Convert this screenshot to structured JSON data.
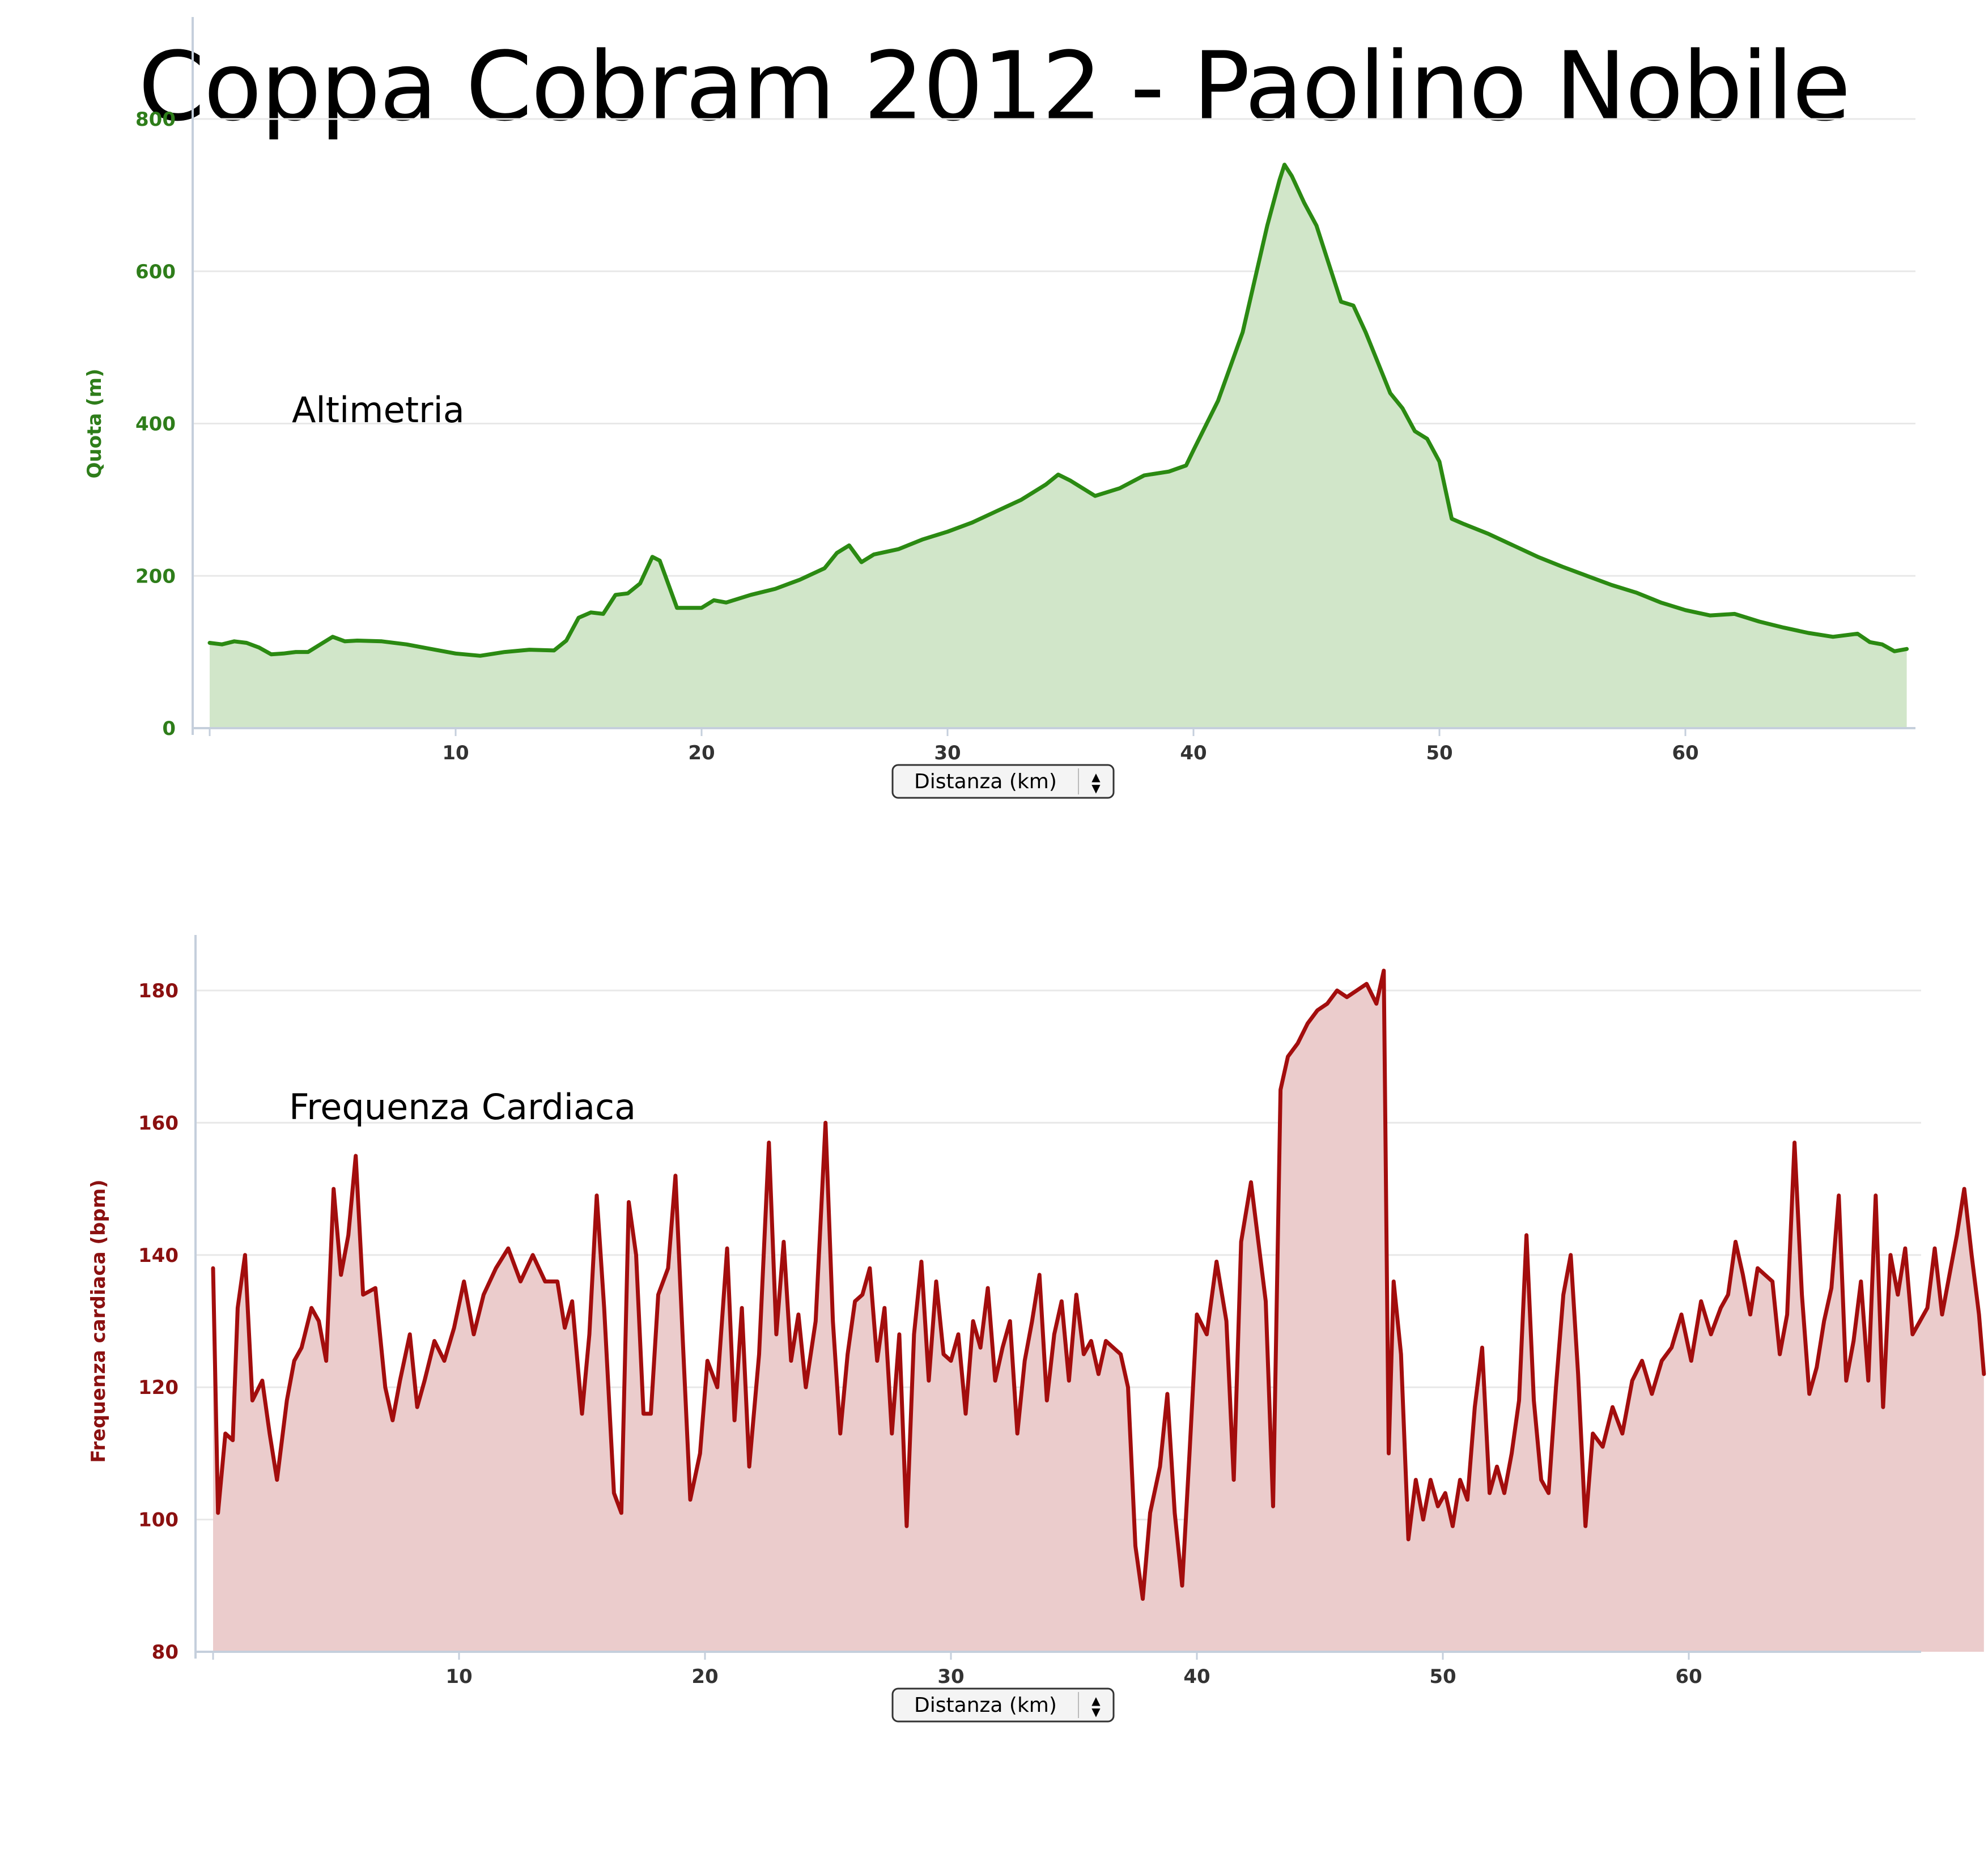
{
  "title": "Coppa Cobram 2012 - Paolino Nobile",
  "x_selector": {
    "label": "Distanza (km)",
    "arrow_up_icon": "▲",
    "arrow_down_icon": "▼"
  },
  "colors": {
    "altimetria_line": "#2b8a12",
    "altimetria_fill": "#d1e6c9",
    "altimetria_text": "#2e7d1a",
    "freq_line": "#a30d0d",
    "freq_fill": "#ebcccc",
    "freq_text": "#8b1010",
    "grid": "#e8e8e8",
    "axis": "#c5cfdc"
  },
  "chart_data": [
    {
      "type": "area",
      "annotation": "Altimetria",
      "xlabel": "Distanza (km)",
      "ylabel": "Quota (m)",
      "xlim": [
        0,
        69
      ],
      "ylim": [
        0,
        800
      ],
      "x_ticks": [
        "10",
        "20",
        "30",
        "40",
        "50",
        "60"
      ],
      "y_ticks": [
        "0",
        "200",
        "400",
        "600",
        "800"
      ],
      "grid": true,
      "points": [
        [
          0,
          112
        ],
        [
          0.5,
          110
        ],
        [
          1,
          114
        ],
        [
          1.5,
          112
        ],
        [
          2,
          106
        ],
        [
          2.5,
          97
        ],
        [
          3,
          98
        ],
        [
          3.5,
          100
        ],
        [
          4,
          100
        ],
        [
          4.5,
          110
        ],
        [
          5,
          120
        ],
        [
          5.5,
          114
        ],
        [
          6,
          115
        ],
        [
          7,
          114
        ],
        [
          8,
          110
        ],
        [
          9,
          104
        ],
        [
          10,
          98
        ],
        [
          11,
          95
        ],
        [
          12,
          100
        ],
        [
          13,
          103
        ],
        [
          14,
          102
        ],
        [
          14.5,
          115
        ],
        [
          15,
          145
        ],
        [
          15.5,
          152
        ],
        [
          16,
          150
        ],
        [
          16.5,
          175
        ],
        [
          17,
          177
        ],
        [
          17.5,
          190
        ],
        [
          18,
          225
        ],
        [
          18.3,
          220
        ],
        [
          19,
          158
        ],
        [
          20,
          158
        ],
        [
          20.5,
          168
        ],
        [
          21,
          165
        ],
        [
          22,
          175
        ],
        [
          23,
          183
        ],
        [
          24,
          195
        ],
        [
          25,
          210
        ],
        [
          25.5,
          230
        ],
        [
          26,
          240
        ],
        [
          26.5,
          218
        ],
        [
          27,
          228
        ],
        [
          28,
          235
        ],
        [
          29,
          248
        ],
        [
          30,
          258
        ],
        [
          31,
          270
        ],
        [
          32,
          285
        ],
        [
          33,
          300
        ],
        [
          34,
          320
        ],
        [
          34.5,
          333
        ],
        [
          35,
          325
        ],
        [
          36,
          305
        ],
        [
          37,
          315
        ],
        [
          38,
          332
        ],
        [
          39,
          337
        ],
        [
          39.7,
          345
        ],
        [
          40,
          365
        ],
        [
          41,
          430
        ],
        [
          42,
          520
        ],
        [
          42.5,
          590
        ],
        [
          43,
          660
        ],
        [
          43.5,
          720
        ],
        [
          43.7,
          740
        ],
        [
          44,
          725
        ],
        [
          44.5,
          690
        ],
        [
          45,
          660
        ],
        [
          45.5,
          610
        ],
        [
          46,
          560
        ],
        [
          46.5,
          555
        ],
        [
          47,
          520
        ],
        [
          47.5,
          480
        ],
        [
          48,
          440
        ],
        [
          48.5,
          420
        ],
        [
          49,
          390
        ],
        [
          49.5,
          380
        ],
        [
          50,
          350
        ],
        [
          50.5,
          275
        ],
        [
          51,
          268
        ],
        [
          52,
          255
        ],
        [
          53,
          240
        ],
        [
          54,
          225
        ],
        [
          55,
          212
        ],
        [
          56,
          200
        ],
        [
          57,
          188
        ],
        [
          58,
          178
        ],
        [
          59,
          165
        ],
        [
          60,
          155
        ],
        [
          61,
          148
        ],
        [
          62,
          150
        ],
        [
          63,
          140
        ],
        [
          64,
          132
        ],
        [
          65,
          125
        ],
        [
          66,
          120
        ],
        [
          67,
          124
        ],
        [
          67.5,
          113
        ],
        [
          68,
          110
        ],
        [
          68.5,
          101
        ],
        [
          69,
          104
        ]
      ]
    },
    {
      "type": "area",
      "annotation": "Frequenza Cardiaca",
      "xlabel": "Distanza (km)",
      "ylabel": "Frequenza cardiaca (bpm)",
      "xlim": [
        0,
        69
      ],
      "ylim": [
        80,
        180
      ],
      "x_ticks": [
        "10",
        "20",
        "30",
        "40",
        "50",
        "60"
      ],
      "y_ticks": [
        "80",
        "100",
        "120",
        "140",
        "160",
        "180"
      ],
      "grid": true,
      "points": [
        [
          0,
          138
        ],
        [
          0.2,
          101
        ],
        [
          0.5,
          113
        ],
        [
          0.8,
          112
        ],
        [
          1,
          132
        ],
        [
          1.3,
          140
        ],
        [
          1.6,
          118
        ],
        [
          2,
          121
        ],
        [
          2.3,
          113
        ],
        [
          2.6,
          106
        ],
        [
          3,
          118
        ],
        [
          3.3,
          124
        ],
        [
          3.6,
          126
        ],
        [
          4,
          132
        ],
        [
          4.3,
          130
        ],
        [
          4.6,
          124
        ],
        [
          4.9,
          150
        ],
        [
          5.2,
          137
        ],
        [
          5.5,
          143
        ],
        [
          5.8,
          155
        ],
        [
          6.1,
          134
        ],
        [
          6.6,
          135
        ],
        [
          7,
          120
        ],
        [
          7.3,
          115
        ],
        [
          7.6,
          121
        ],
        [
          8,
          128
        ],
        [
          8.3,
          117
        ],
        [
          8.6,
          121
        ],
        [
          9,
          127
        ],
        [
          9.4,
          124
        ],
        [
          9.8,
          129
        ],
        [
          10.2,
          136
        ],
        [
          10.6,
          128
        ],
        [
          11,
          134
        ],
        [
          11.5,
          138
        ],
        [
          12,
          141
        ],
        [
          12.5,
          136
        ],
        [
          13,
          140
        ],
        [
          13.5,
          136
        ],
        [
          14,
          136
        ],
        [
          14.3,
          129
        ],
        [
          14.6,
          133
        ],
        [
          15,
          116
        ],
        [
          15.3,
          128
        ],
        [
          15.6,
          149
        ],
        [
          15.9,
          132
        ],
        [
          16.3,
          104
        ],
        [
          16.6,
          101
        ],
        [
          16.9,
          148
        ],
        [
          17.2,
          140
        ],
        [
          17.5,
          116
        ],
        [
          17.8,
          116
        ],
        [
          18.1,
          134
        ],
        [
          18.5,
          138
        ],
        [
          18.8,
          152
        ],
        [
          19.1,
          127
        ],
        [
          19.4,
          103
        ],
        [
          19.8,
          110
        ],
        [
          20.1,
          124
        ],
        [
          20.5,
          120
        ],
        [
          20.9,
          141
        ],
        [
          21.2,
          115
        ],
        [
          21.5,
          132
        ],
        [
          21.8,
          108
        ],
        [
          22.2,
          125
        ],
        [
          22.6,
          157
        ],
        [
          22.9,
          128
        ],
        [
          23.2,
          142
        ],
        [
          23.5,
          124
        ],
        [
          23.8,
          131
        ],
        [
          24.1,
          120
        ],
        [
          24.5,
          130
        ],
        [
          24.9,
          160
        ],
        [
          25.2,
          130
        ],
        [
          25.5,
          113
        ],
        [
          25.8,
          125
        ],
        [
          26.1,
          133
        ],
        [
          26.4,
          134
        ],
        [
          26.7,
          138
        ],
        [
          27,
          124
        ],
        [
          27.3,
          132
        ],
        [
          27.6,
          113
        ],
        [
          27.9,
          128
        ],
        [
          28.2,
          99
        ],
        [
          28.5,
          128
        ],
        [
          28.8,
          139
        ],
        [
          29.1,
          121
        ],
        [
          29.4,
          136
        ],
        [
          29.7,
          125
        ],
        [
          30,
          124
        ],
        [
          30.3,
          128
        ],
        [
          30.6,
          116
        ],
        [
          30.9,
          130
        ],
        [
          31.2,
          126
        ],
        [
          31.5,
          135
        ],
        [
          31.8,
          121
        ],
        [
          32.1,
          126
        ],
        [
          32.4,
          130
        ],
        [
          32.7,
          113
        ],
        [
          33,
          124
        ],
        [
          33.3,
          130
        ],
        [
          33.6,
          137
        ],
        [
          33.9,
          118
        ],
        [
          34.2,
          128
        ],
        [
          34.5,
          133
        ],
        [
          34.8,
          121
        ],
        [
          35.1,
          134
        ],
        [
          35.4,
          125
        ],
        [
          35.7,
          127
        ],
        [
          36,
          122
        ],
        [
          36.3,
          127
        ],
        [
          36.6,
          126
        ],
        [
          36.9,
          125
        ],
        [
          37.2,
          120
        ],
        [
          37.5,
          96
        ],
        [
          37.8,
          88
        ],
        [
          38.1,
          101
        ],
        [
          38.5,
          108
        ],
        [
          38.8,
          119
        ],
        [
          39.1,
          101
        ],
        [
          39.4,
          90
        ],
        [
          39.7,
          110
        ],
        [
          40,
          131
        ],
        [
          40.4,
          128
        ],
        [
          40.8,
          139
        ],
        [
          41.2,
          130
        ],
        [
          41.5,
          106
        ],
        [
          41.8,
          142
        ],
        [
          42.2,
          151
        ],
        [
          42.5,
          142
        ],
        [
          42.8,
          133
        ],
        [
          43.1,
          102
        ],
        [
          43.4,
          165
        ],
        [
          43.7,
          170
        ],
        [
          44.1,
          172
        ],
        [
          44.5,
          175
        ],
        [
          44.9,
          177
        ],
        [
          45.3,
          178
        ],
        [
          45.7,
          180
        ],
        [
          46.1,
          179
        ],
        [
          46.5,
          180
        ],
        [
          46.9,
          181
        ],
        [
          47.3,
          178
        ],
        [
          47.6,
          183
        ],
        [
          47.8,
          110
        ],
        [
          48,
          136
        ],
        [
          48.3,
          125
        ],
        [
          48.6,
          97
        ],
        [
          48.9,
          106
        ],
        [
          49.2,
          100
        ],
        [
          49.5,
          106
        ],
        [
          49.8,
          102
        ],
        [
          50.1,
          104
        ],
        [
          50.4,
          99
        ],
        [
          50.7,
          106
        ],
        [
          51,
          103
        ],
        [
          51.3,
          117
        ],
        [
          51.6,
          126
        ],
        [
          51.9,
          104
        ],
        [
          52.2,
          108
        ],
        [
          52.5,
          104
        ],
        [
          52.8,
          110
        ],
        [
          53.1,
          118
        ],
        [
          53.4,
          143
        ],
        [
          53.7,
          118
        ],
        [
          54,
          106
        ],
        [
          54.3,
          104
        ],
        [
          54.6,
          120
        ],
        [
          54.9,
          134
        ],
        [
          55.2,
          140
        ],
        [
          55.5,
          122
        ],
        [
          55.8,
          99
        ],
        [
          56.1,
          113
        ],
        [
          56.5,
          111
        ],
        [
          56.9,
          117
        ],
        [
          57.3,
          113
        ],
        [
          57.7,
          121
        ],
        [
          58.1,
          124
        ],
        [
          58.5,
          119
        ],
        [
          58.9,
          124
        ],
        [
          59.3,
          126
        ],
        [
          59.7,
          131
        ],
        [
          60.1,
          124
        ],
        [
          60.5,
          133
        ],
        [
          60.9,
          128
        ],
        [
          61.3,
          132
        ],
        [
          61.6,
          134
        ],
        [
          61.9,
          142
        ],
        [
          62.2,
          137
        ],
        [
          62.5,
          131
        ],
        [
          62.8,
          138
        ],
        [
          63.1,
          137
        ],
        [
          63.4,
          136
        ],
        [
          63.7,
          125
        ],
        [
          64,
          131
        ],
        [
          64.3,
          157
        ],
        [
          64.6,
          134
        ],
        [
          64.9,
          119
        ],
        [
          65.2,
          123
        ],
        [
          65.5,
          130
        ],
        [
          65.8,
          135
        ],
        [
          66.1,
          149
        ],
        [
          66.4,
          121
        ],
        [
          66.7,
          127
        ],
        [
          67,
          136
        ],
        [
          67.3,
          121
        ],
        [
          67.6,
          149
        ],
        [
          67.9,
          117
        ],
        [
          68.2,
          140
        ],
        [
          68.5,
          134
        ],
        [
          68.8,
          141
        ],
        [
          69.1,
          128
        ],
        [
          69.4,
          130
        ],
        [
          69.7,
          132
        ],
        [
          70,
          141
        ],
        [
          70.3,
          131
        ],
        [
          70.6,
          137
        ],
        [
          70.9,
          143
        ],
        [
          71.2,
          150
        ],
        [
          71.5,
          140
        ],
        [
          71.8,
          131
        ],
        [
          72,
          122
        ]
      ]
    }
  ]
}
